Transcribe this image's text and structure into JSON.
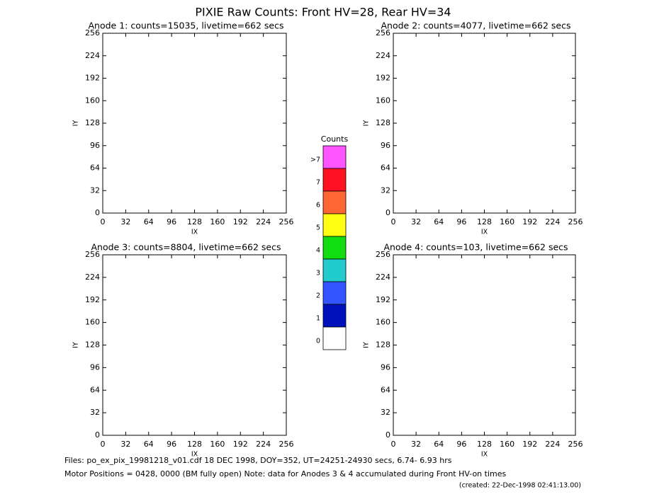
{
  "title": "PIXIE Raw Counts:  Front HV=28, Rear HV=34",
  "chart_data": [
    {
      "type": "scatter",
      "title": "Anode 1: counts=15035, livetime=662 secs",
      "xlabel": "IX",
      "ylabel": "IY",
      "xlim": [
        0,
        256
      ],
      "ylim": [
        0,
        256
      ],
      "xticks": [
        0,
        32,
        64,
        96,
        128,
        160,
        192,
        224,
        256
      ],
      "yticks": [
        0,
        32,
        64,
        96,
        128,
        160,
        192,
        224,
        256
      ]
    },
    {
      "type": "scatter",
      "title": "Anode 2: counts=4077, livetime=662 secs",
      "xlabel": "IX",
      "ylabel": "IY",
      "xlim": [
        0,
        256
      ],
      "ylim": [
        0,
        256
      ],
      "xticks": [
        0,
        32,
        64,
        96,
        128,
        160,
        192,
        224,
        256
      ],
      "yticks": [
        0,
        32,
        64,
        96,
        128,
        160,
        192,
        224,
        256
      ]
    },
    {
      "type": "scatter",
      "title": "Anode 3: counts=8804, livetime=662 secs",
      "xlabel": "IX",
      "ylabel": "IY",
      "xlim": [
        0,
        256
      ],
      "ylim": [
        0,
        256
      ],
      "xticks": [
        0,
        32,
        64,
        96,
        128,
        160,
        192,
        224,
        256
      ],
      "yticks": [
        0,
        32,
        64,
        96,
        128,
        160,
        192,
        224,
        256
      ]
    },
    {
      "type": "scatter",
      "title": "Anode 4: counts=103, livetime=662 secs",
      "xlabel": "IX",
      "ylabel": "IY",
      "xlim": [
        0,
        256
      ],
      "ylim": [
        0,
        256
      ],
      "xticks": [
        0,
        32,
        64,
        96,
        128,
        160,
        192,
        224,
        256
      ],
      "yticks": [
        0,
        32,
        64,
        96,
        128,
        160,
        192,
        224,
        256
      ]
    }
  ],
  "colorbar": {
    "title": "Counts",
    "levels": [
      {
        "label": ">7",
        "color": "#ff55ff"
      },
      {
        "label": "7",
        "color": "#ff1122"
      },
      {
        "label": "6",
        "color": "#ff6633"
      },
      {
        "label": "5",
        "color": "#ffff11"
      },
      {
        "label": "4",
        "color": "#11dd11"
      },
      {
        "label": "3",
        "color": "#22cccc"
      },
      {
        "label": "2",
        "color": "#3355ff"
      },
      {
        "label": "1",
        "color": "#0011bb"
      },
      {
        "label": "0",
        "color": "#ffffff"
      }
    ]
  },
  "footer": {
    "files": "Files: po_ex_pix_19981218_v01.cdf    18 DEC 1998, DOY=352, UT=24251-24930 secs,  6.74- 6.93 hrs",
    "motor": "Motor Positions = 0428, 0000 (BM fully open)    Note: data for Anodes 3 & 4 accumulated during Front HV-on times",
    "created": "(created: 22-Dec-1998 02:41:13.00)"
  }
}
